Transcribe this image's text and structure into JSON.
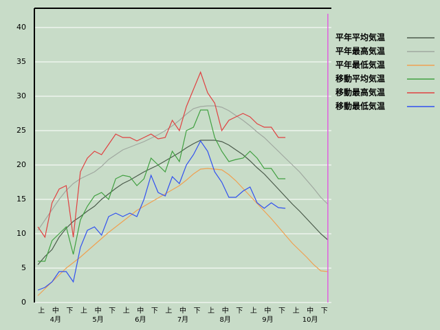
{
  "chart_data": {
    "type": "line",
    "categories": [
      "上",
      null,
      "中",
      null,
      "下",
      null,
      "上",
      null,
      "中",
      null,
      "下",
      null,
      "上",
      null,
      "中",
      null,
      "下",
      null,
      "上",
      null,
      "中",
      null,
      "下",
      null,
      "上",
      null,
      "中",
      null,
      "下",
      null,
      "上",
      null,
      "中",
      null,
      "下",
      null,
      "上",
      null,
      "中",
      null,
      "下",
      null
    ],
    "months": [
      "4月",
      "5月",
      "6月",
      "7月",
      "8月",
      "9月",
      "10月"
    ],
    "ylim": [
      0,
      42.8
    ],
    "yticks": [
      0,
      5,
      10,
      15,
      20,
      25,
      30,
      35,
      40
    ],
    "grid": true,
    "background": "#c8dcc8",
    "marker_color": "#e060e0",
    "series": [
      {
        "name": "平年平均気温",
        "color": "#4a5a4a",
        "values": [
          5.5,
          6.7,
          7.7,
          9.5,
          10.8,
          11.8,
          12.5,
          13.3,
          14,
          15,
          15.8,
          16.6,
          17.3,
          17.8,
          18.4,
          19,
          19.5,
          20,
          20.6,
          21.2,
          21.8,
          22.5,
          23.1,
          23.6,
          23.6,
          23.6,
          23.4,
          22.9,
          22.2,
          21.5,
          20.6,
          19.6,
          18.7,
          17.6,
          16.5,
          15.4,
          14.3,
          13.3,
          12.2,
          11.1,
          10,
          9.1
        ]
      },
      {
        "name": "平年最高気温",
        "color": "#a0a8a0",
        "values": [
          10.5,
          12,
          13.5,
          15,
          16.3,
          17.3,
          18,
          18.5,
          19,
          19.8,
          20.8,
          21.5,
          22.2,
          22.6,
          23,
          23.4,
          23.9,
          24.4,
          25,
          25.7,
          26.5,
          27.4,
          28.2,
          28.5,
          28.6,
          28.6,
          28.4,
          27.9,
          27.2,
          26.5,
          25.7,
          24.8,
          24,
          23,
          22,
          21,
          20,
          19,
          17.8,
          16.6,
          15.3,
          14.3
        ]
      },
      {
        "name": "平年最低気温",
        "color": "#f0a050",
        "values": [
          1,
          2,
          3,
          4,
          5,
          5.8,
          6.6,
          7.5,
          8.4,
          9.3,
          10.2,
          11,
          11.8,
          12.6,
          13.4,
          14,
          14.6,
          15.2,
          15.8,
          16.4,
          17,
          17.8,
          18.7,
          19.4,
          19.5,
          19.4,
          19.3,
          18.6,
          17.7,
          16.6,
          15.5,
          14.4,
          13.3,
          12.2,
          11,
          9.8,
          8.6,
          7.6,
          6.6,
          5.5,
          4.6,
          4.5
        ]
      },
      {
        "name": "移動平均気温",
        "color": "#40a040",
        "values": [
          6,
          6,
          9,
          10,
          11,
          7,
          12,
          14,
          15.5,
          16,
          15,
          18,
          18.5,
          18.3,
          17,
          18,
          21,
          20,
          19,
          22,
          20.5,
          25,
          25.5,
          28,
          28,
          24,
          22,
          20.5,
          20.8,
          21,
          22,
          21,
          19.5,
          19.5,
          18,
          18,
          null,
          null,
          null,
          null,
          null,
          null
        ]
      },
      {
        "name": "移動最高気温",
        "color": "#e04040",
        "values": [
          11,
          9.5,
          14.5,
          16.5,
          17,
          9.5,
          19,
          21,
          22,
          21.5,
          23,
          24.5,
          24,
          24,
          23.5,
          24,
          24.5,
          23.8,
          24,
          26.5,
          25,
          28.5,
          31,
          33.5,
          30.5,
          29,
          25,
          26.5,
          27,
          27.5,
          27,
          26,
          25.5,
          25.5,
          24,
          24,
          null,
          null,
          null,
          null,
          null,
          null
        ]
      },
      {
        "name": "移動最低気温",
        "color": "#3050f0",
        "values": [
          1.8,
          2.2,
          3,
          4.5,
          4.5,
          3,
          8,
          10.5,
          11,
          9.8,
          12.5,
          13,
          12.5,
          13,
          12.5,
          15,
          18.5,
          16,
          15.5,
          18.3,
          17.3,
          20,
          21.5,
          23.5,
          22,
          19,
          17.5,
          15.3,
          15.3,
          16.2,
          16.8,
          14.5,
          13.7,
          14.5,
          13.8,
          13.7,
          null,
          null,
          null,
          null,
          null,
          null
        ]
      }
    ]
  }
}
